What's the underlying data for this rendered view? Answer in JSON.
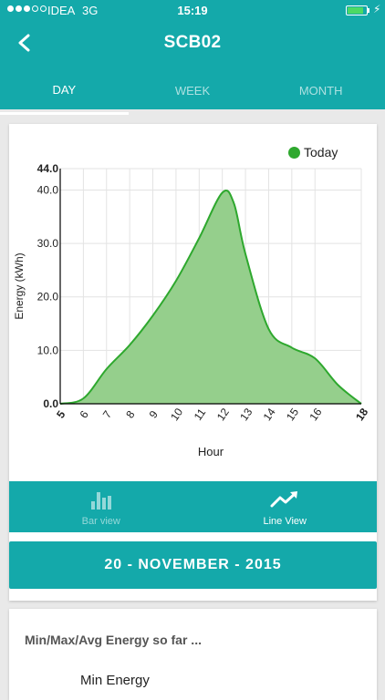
{
  "status_bar": {
    "carrier": "IDEA",
    "network": "3G",
    "time": "15:19",
    "battery_fraction": 0.85,
    "signal_bars": 3,
    "signal_total": 5
  },
  "nav": {
    "title": "SCB02",
    "back_icon": "chevron-left-icon"
  },
  "tabs": [
    {
      "label": "DAY",
      "active": true
    },
    {
      "label": "WEEK",
      "active": false
    },
    {
      "label": "MONTH",
      "active": false
    }
  ],
  "chart_data": {
    "type": "area",
    "xlabel": "Hour",
    "ylabel": "Energy (kWh)",
    "legend": [
      "Today"
    ],
    "legend_position": "top-right",
    "grid": true,
    "ylim": [
      0,
      44
    ],
    "y_ticks": [
      "0.0",
      "10.0",
      "20.0",
      "30.0",
      "40.0",
      "44.0"
    ],
    "x_ticks": [
      "5",
      "6",
      "7",
      "8",
      "9",
      "10",
      "11",
      "12",
      "13",
      "14",
      "15",
      "16",
      "18"
    ],
    "color": "#2ea82e",
    "fill_color": "#95cf8c",
    "series": [
      {
        "name": "Today",
        "x": [
          5,
          6,
          7,
          8,
          9,
          10,
          11,
          12,
          12.5,
          13,
          14,
          15,
          16,
          17,
          18
        ],
        "values": [
          0,
          1,
          6.5,
          11,
          16.5,
          23,
          31,
          39.5,
          37.5,
          28,
          14,
          10.5,
          8.5,
          3.5,
          0
        ]
      }
    ]
  },
  "view_toggle": [
    {
      "label": "Bar view",
      "icon": "bar-chart-icon",
      "active": false
    },
    {
      "label": "Line View",
      "icon": "trend-line-icon",
      "active": true
    }
  ],
  "date_bar": {
    "label": "20 - NOVEMBER - 2015"
  },
  "summary": {
    "title": "Min/Max/Avg Energy so far ...",
    "min_label": "Min Energy"
  }
}
